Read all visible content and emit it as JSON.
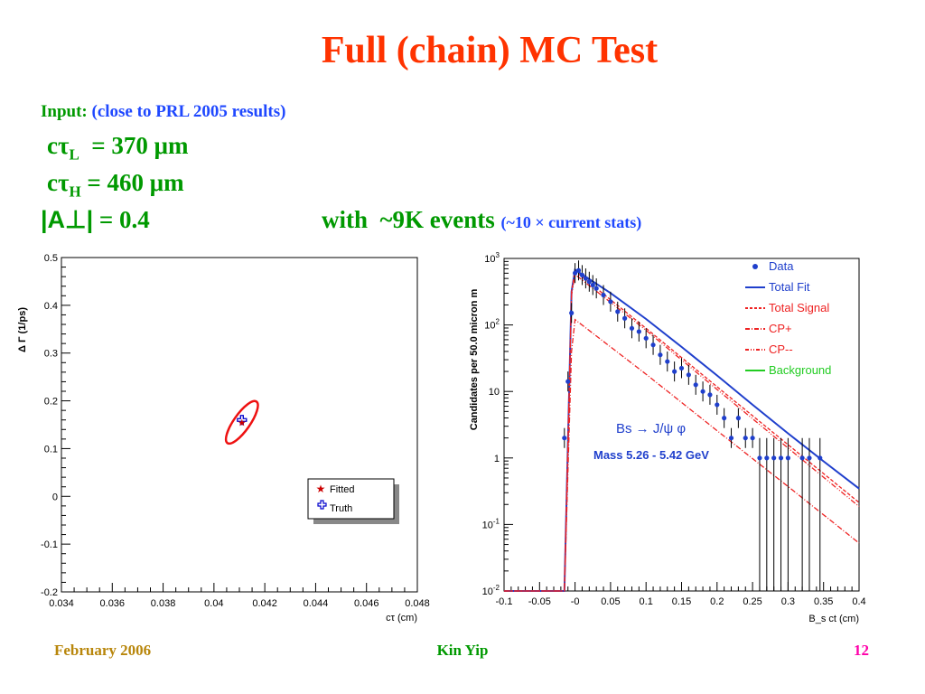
{
  "slide": {
    "title": "Full (chain) MC Test",
    "input_label": "Input:",
    "input_note": "(close to PRL 2005 results",
    "input_close": ")",
    "ctau_L": {
      "prefix": "cτ",
      "sub": "L",
      "value": "  = 370 μm"
    },
    "ctau_H": {
      "prefix": "cτ",
      "sub": "H",
      "value": " = 460 μm"
    },
    "a_perp": {
      "text": "|A⊥|",
      "value": " = 0.4"
    },
    "events": {
      "text": "with  ~9K events",
      "note": "(~10 × current stats)"
    }
  },
  "footer": {
    "date": "February 2006",
    "author": "Kin Yip",
    "page": "12"
  },
  "chart_data": [
    {
      "type": "scatter",
      "xlabel": "cτ (cm)",
      "ylabel": "Δ Γ (1/ps)",
      "xlim": [
        0.034,
        0.048
      ],
      "ylim": [
        -0.2,
        0.5
      ],
      "xticks": [
        "0.034",
        "0.036",
        "0.038",
        "0.04",
        "0.042",
        "0.044",
        "0.046",
        "0.048"
      ],
      "yticks": [
        "-0.2",
        "-0.1",
        "0",
        "0.1",
        "0.2",
        "0.3",
        "0.4",
        "0.5"
      ],
      "series": [
        {
          "name": "Fitted",
          "marker": "star",
          "color": "#cc0000",
          "points": [
            [
              0.0411,
              0.155
            ]
          ]
        },
        {
          "name": "Truth",
          "marker": "open-cross",
          "color": "#0000cc",
          "points": [
            [
              0.0411,
              0.16
            ]
          ]
        }
      ],
      "contour": {
        "color": "#ee1111",
        "center": [
          0.0411,
          0.155
        ],
        "description": "error ellipse"
      },
      "legend": "bottom-right"
    },
    {
      "type": "line",
      "xlabel": "B_s ct  (cm)",
      "ylabel": "Candidates per 50.0 micron m",
      "xlim": [
        -0.1,
        0.4
      ],
      "ylim_log10": [
        -2,
        3
      ],
      "log_y": true,
      "xticks": [
        "-0.1",
        "-0.05",
        "-0",
        "0.05",
        "0.1",
        "0.15",
        "0.2",
        "0.25",
        "0.3",
        "0.35",
        "0.4"
      ],
      "yticks": [
        "10-2",
        "10-1",
        "1",
        "10",
        "102",
        "103"
      ],
      "annotation": {
        "decay": "Bs → J/ψ φ",
        "mass": "Mass 5.26 - 5.42 GeV"
      },
      "legend": "top-right",
      "legend_entries": [
        {
          "name": "Data",
          "color": "#1f3fcc",
          "style": "dot"
        },
        {
          "name": "Total Fit",
          "color": "#1f3fcc",
          "style": "solid"
        },
        {
          "name": "Total Signal",
          "color": "#ee2222",
          "style": "dashed"
        },
        {
          "name": "CP+",
          "color": "#ee2222",
          "style": "dashdot"
        },
        {
          "name": "CP--",
          "color": "#ee2222",
          "style": "dashdotdot"
        },
        {
          "name": "Background",
          "color": "#22cc22",
          "style": "solid"
        }
      ],
      "series": [
        {
          "name": "Total Fit",
          "x": [
            -0.1,
            -0.015,
            -0.005,
            0.0,
            0.05,
            0.1,
            0.15,
            0.2,
            0.25,
            0.3,
            0.35,
            0.4
          ],
          "log10y": [
            -2,
            -2,
            2.5,
            2.83,
            2.48,
            2.09,
            1.67,
            1.24,
            0.8,
            0.37,
            -0.05,
            -0.46
          ]
        },
        {
          "name": "CP+",
          "x": [
            -0.1,
            -0.015,
            -0.005,
            0.0,
            0.1,
            0.2,
            0.3,
            0.4
          ],
          "log10y": [
            -2,
            -2,
            1.6,
            2.08,
            1.26,
            0.41,
            -0.43,
            -1.28
          ]
        },
        {
          "name": "Total Signal",
          "x": [
            -0.1,
            -0.015,
            -0.005,
            0.0,
            0.1,
            0.2,
            0.3,
            0.4
          ],
          "log10y": [
            -2,
            -2,
            2.5,
            2.81,
            1.95,
            1.07,
            0.2,
            -0.67
          ]
        },
        {
          "name": "CP--",
          "x": [
            -0.1,
            -0.015,
            -0.005,
            0.0,
            0.1,
            0.2,
            0.3,
            0.4
          ],
          "log10y": [
            -2,
            -2,
            2.45,
            2.76,
            1.92,
            1.03,
            0.15,
            -0.73
          ]
        }
      ],
      "data_points": {
        "x": [
          -0.015,
          -0.01,
          -0.005,
          0.0,
          0.005,
          0.01,
          0.015,
          0.02,
          0.025,
          0.03,
          0.04,
          0.05,
          0.06,
          0.07,
          0.08,
          0.09,
          0.1,
          0.11,
          0.12,
          0.13,
          0.14,
          0.15,
          0.16,
          0.17,
          0.18,
          0.19,
          0.2,
          0.21,
          0.22,
          0.23,
          0.24,
          0.25,
          0.26,
          0.27,
          0.28,
          0.29,
          0.3,
          0.32,
          0.33,
          0.345
        ],
        "log10y": [
          0.3,
          1.15,
          2.18,
          2.78,
          2.82,
          2.75,
          2.7,
          2.65,
          2.6,
          2.55,
          2.45,
          2.35,
          2.2,
          2.1,
          1.95,
          1.9,
          1.8,
          1.7,
          1.55,
          1.45,
          1.3,
          1.35,
          1.25,
          1.1,
          1.0,
          0.95,
          0.8,
          0.6,
          0.3,
          0.6,
          0.3,
          0.3,
          0.0,
          0.0,
          0.0,
          0.0,
          0.0,
          0.0,
          0.0,
          0.0
        ]
      }
    }
  ]
}
